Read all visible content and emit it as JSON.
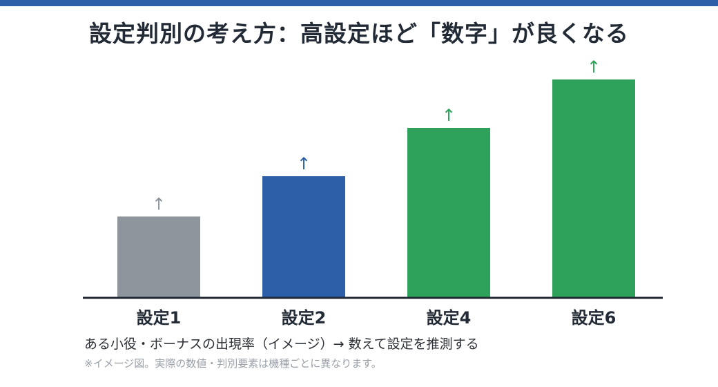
{
  "title": "設定判別の考え方：高設定ほど「数字」が良くなる",
  "caption": "ある小役・ボーナスの出現率（イメージ）→ 数えて設定を推測する",
  "note": "※イメージ図。実際の数値・判別要素は機種ごとに異なります。",
  "colors": {
    "accent": "#2c5fa8",
    "gray": "#8e959d",
    "blue": "#2c5fa8",
    "green": "#2ea25a",
    "axis": "#222a36",
    "text": "#222a36"
  },
  "chart_data": {
    "type": "bar",
    "title": "設定判別の考え方：高設定ほど「数字」が良くなる",
    "categories": [
      "設定1",
      "設定2",
      "設定4",
      "設定6"
    ],
    "values": [
      1.0,
      1.5,
      2.1,
      2.7
    ],
    "ylim": [
      0,
      2.7
    ],
    "bar_colors": [
      "#8e959d",
      "#2c5fa8",
      "#2ea25a",
      "#2ea25a"
    ],
    "markers": [
      "↑",
      "↑",
      "↑",
      "↑"
    ],
    "grid": false,
    "legend": "none",
    "xlabel": "",
    "ylabel": ""
  }
}
